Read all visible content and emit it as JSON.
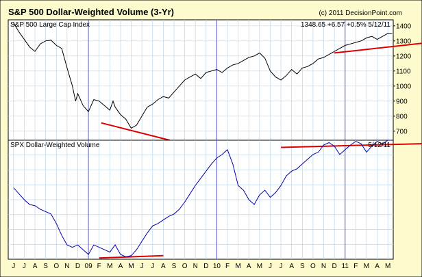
{
  "colors": {
    "frame_bg": "#fdfbcd",
    "plot_bg": "#ffffff",
    "grid": "#bcd6e8",
    "vline": "#5a5adc",
    "price_line": "#000000",
    "volume_line": "#0000aa",
    "trend_line": "#dd0000"
  },
  "chart_data": [
    {
      "type": "line",
      "title": "S&P 500 Dollar-Weighted Volume (3-Yr)",
      "credit": "(c) 2011 DecisionPoint.com",
      "panel_label": "S&P 500 Large Cap Index",
      "readout": "1348.65  +6.57  +0.5%  5/12/11",
      "ylim": [
        640,
        1440
      ],
      "yticks": [
        700,
        800,
        900,
        1000,
        1100,
        1200,
        1300,
        1400
      ],
      "ytick_labels": [
        "700",
        "800",
        "900",
        "1000",
        "1100",
        "1200",
        "1300",
        "1400"
      ],
      "grid": true,
      "series": [
        {
          "x": [
            0,
            0.5,
            1,
            1.5,
            2,
            2.5,
            3,
            3.5,
            4,
            4.5,
            5,
            5.5,
            5.8,
            6,
            6.5,
            7,
            7.5,
            8,
            8.5,
            9,
            9.3,
            9.5,
            10,
            10.5,
            11,
            11.5,
            12,
            12.5,
            13,
            13.5,
            14,
            14.5,
            15,
            15.5,
            16,
            16.5,
            17,
            17.5,
            18,
            18.5,
            19,
            19.5,
            20,
            20.5,
            21,
            21.5,
            22,
            22.5,
            23,
            23.5,
            24,
            24.5,
            25,
            25.5,
            26,
            26.5,
            27,
            27.5,
            28,
            28.5,
            29,
            29.5,
            30,
            30.5,
            31,
            31.5,
            32,
            32.5,
            33,
            33.5,
            34,
            34.5,
            35,
            35.4
          ],
          "values": [
            1420,
            1360,
            1310,
            1260,
            1230,
            1280,
            1300,
            1305,
            1270,
            1250,
            1120,
            1000,
            900,
            950,
            870,
            830,
            910,
            900,
            870,
            840,
            900,
            860,
            810,
            780,
            720,
            740,
            800,
            860,
            880,
            910,
            930,
            920,
            960,
            1000,
            1040,
            1060,
            1080,
            1050,
            1090,
            1100,
            1110,
            1090,
            1120,
            1140,
            1150,
            1170,
            1190,
            1200,
            1220,
            1185,
            1100,
            1060,
            1040,
            1070,
            1110,
            1080,
            1120,
            1130,
            1150,
            1180,
            1190,
            1210,
            1230,
            1250,
            1270,
            1280,
            1290,
            1300,
            1320,
            1330,
            1310,
            1330,
            1350,
            1348.65
          ]
        }
      ],
      "trendlines": [
        [
          8.2,
          755,
          14.6,
          640
        ],
        [
          30.0,
          1220,
          51.0,
          1385
        ]
      ]
    },
    {
      "type": "line",
      "panel_label": "SPX Dollar-Weighted Volume",
      "readout": "5/12/11",
      "ylim": [
        0,
        100
      ],
      "grid": true,
      "series": [
        {
          "x": [
            0,
            0.5,
            1,
            1.5,
            2,
            2.5,
            3,
            3.5,
            4,
            4.5,
            5,
            5.5,
            6,
            6.5,
            7,
            7.5,
            8,
            8.5,
            9,
            9.5,
            10,
            10.5,
            11,
            11.5,
            12,
            12.5,
            13,
            13.5,
            14,
            14.5,
            15,
            15.5,
            16,
            16.5,
            17,
            17.5,
            18,
            18.5,
            19,
            19.5,
            20,
            20.5,
            21,
            21.5,
            22,
            22.5,
            23,
            23.5,
            24,
            24.5,
            25,
            25.5,
            26,
            26.5,
            27,
            27.5,
            28,
            28.5,
            29,
            29.5,
            30,
            30.5,
            31,
            31.5,
            32,
            32.5,
            33,
            33.5,
            34,
            34.5,
            35,
            35.4
          ],
          "values": [
            60,
            55,
            50,
            46,
            45,
            42,
            40,
            38,
            30,
            20,
            12,
            10,
            12,
            8,
            4,
            12,
            10,
            8,
            6,
            12,
            4,
            2,
            3,
            8,
            15,
            22,
            28,
            30,
            33,
            36,
            38,
            42,
            48,
            55,
            62,
            68,
            74,
            80,
            85,
            88,
            92,
            80,
            62,
            58,
            50,
            46,
            54,
            58,
            52,
            56,
            62,
            70,
            74,
            76,
            80,
            84,
            88,
            90,
            96,
            98,
            95,
            88,
            92,
            96,
            99,
            97,
            90,
            95,
            99,
            97,
            100,
            100
          ]
        }
      ],
      "trendlines": [
        [
          8.0,
          1,
          14.0,
          3
        ],
        [
          25.0,
          94,
          51.0,
          100
        ]
      ]
    }
  ],
  "x_axis": {
    "tick_labels": [
      "J",
      "J",
      "A",
      "S",
      "O",
      "N",
      "D",
      "09",
      "F",
      "M",
      "A",
      "M",
      "J",
      "J",
      "A",
      "S",
      "O",
      "N",
      "D",
      "10",
      "F",
      "M",
      "A",
      "M",
      "J",
      "J",
      "A",
      "S",
      "O",
      "N",
      "D",
      "11",
      "F",
      "M",
      "A",
      "M"
    ],
    "year_marker_indices": [
      7,
      19,
      31
    ]
  }
}
